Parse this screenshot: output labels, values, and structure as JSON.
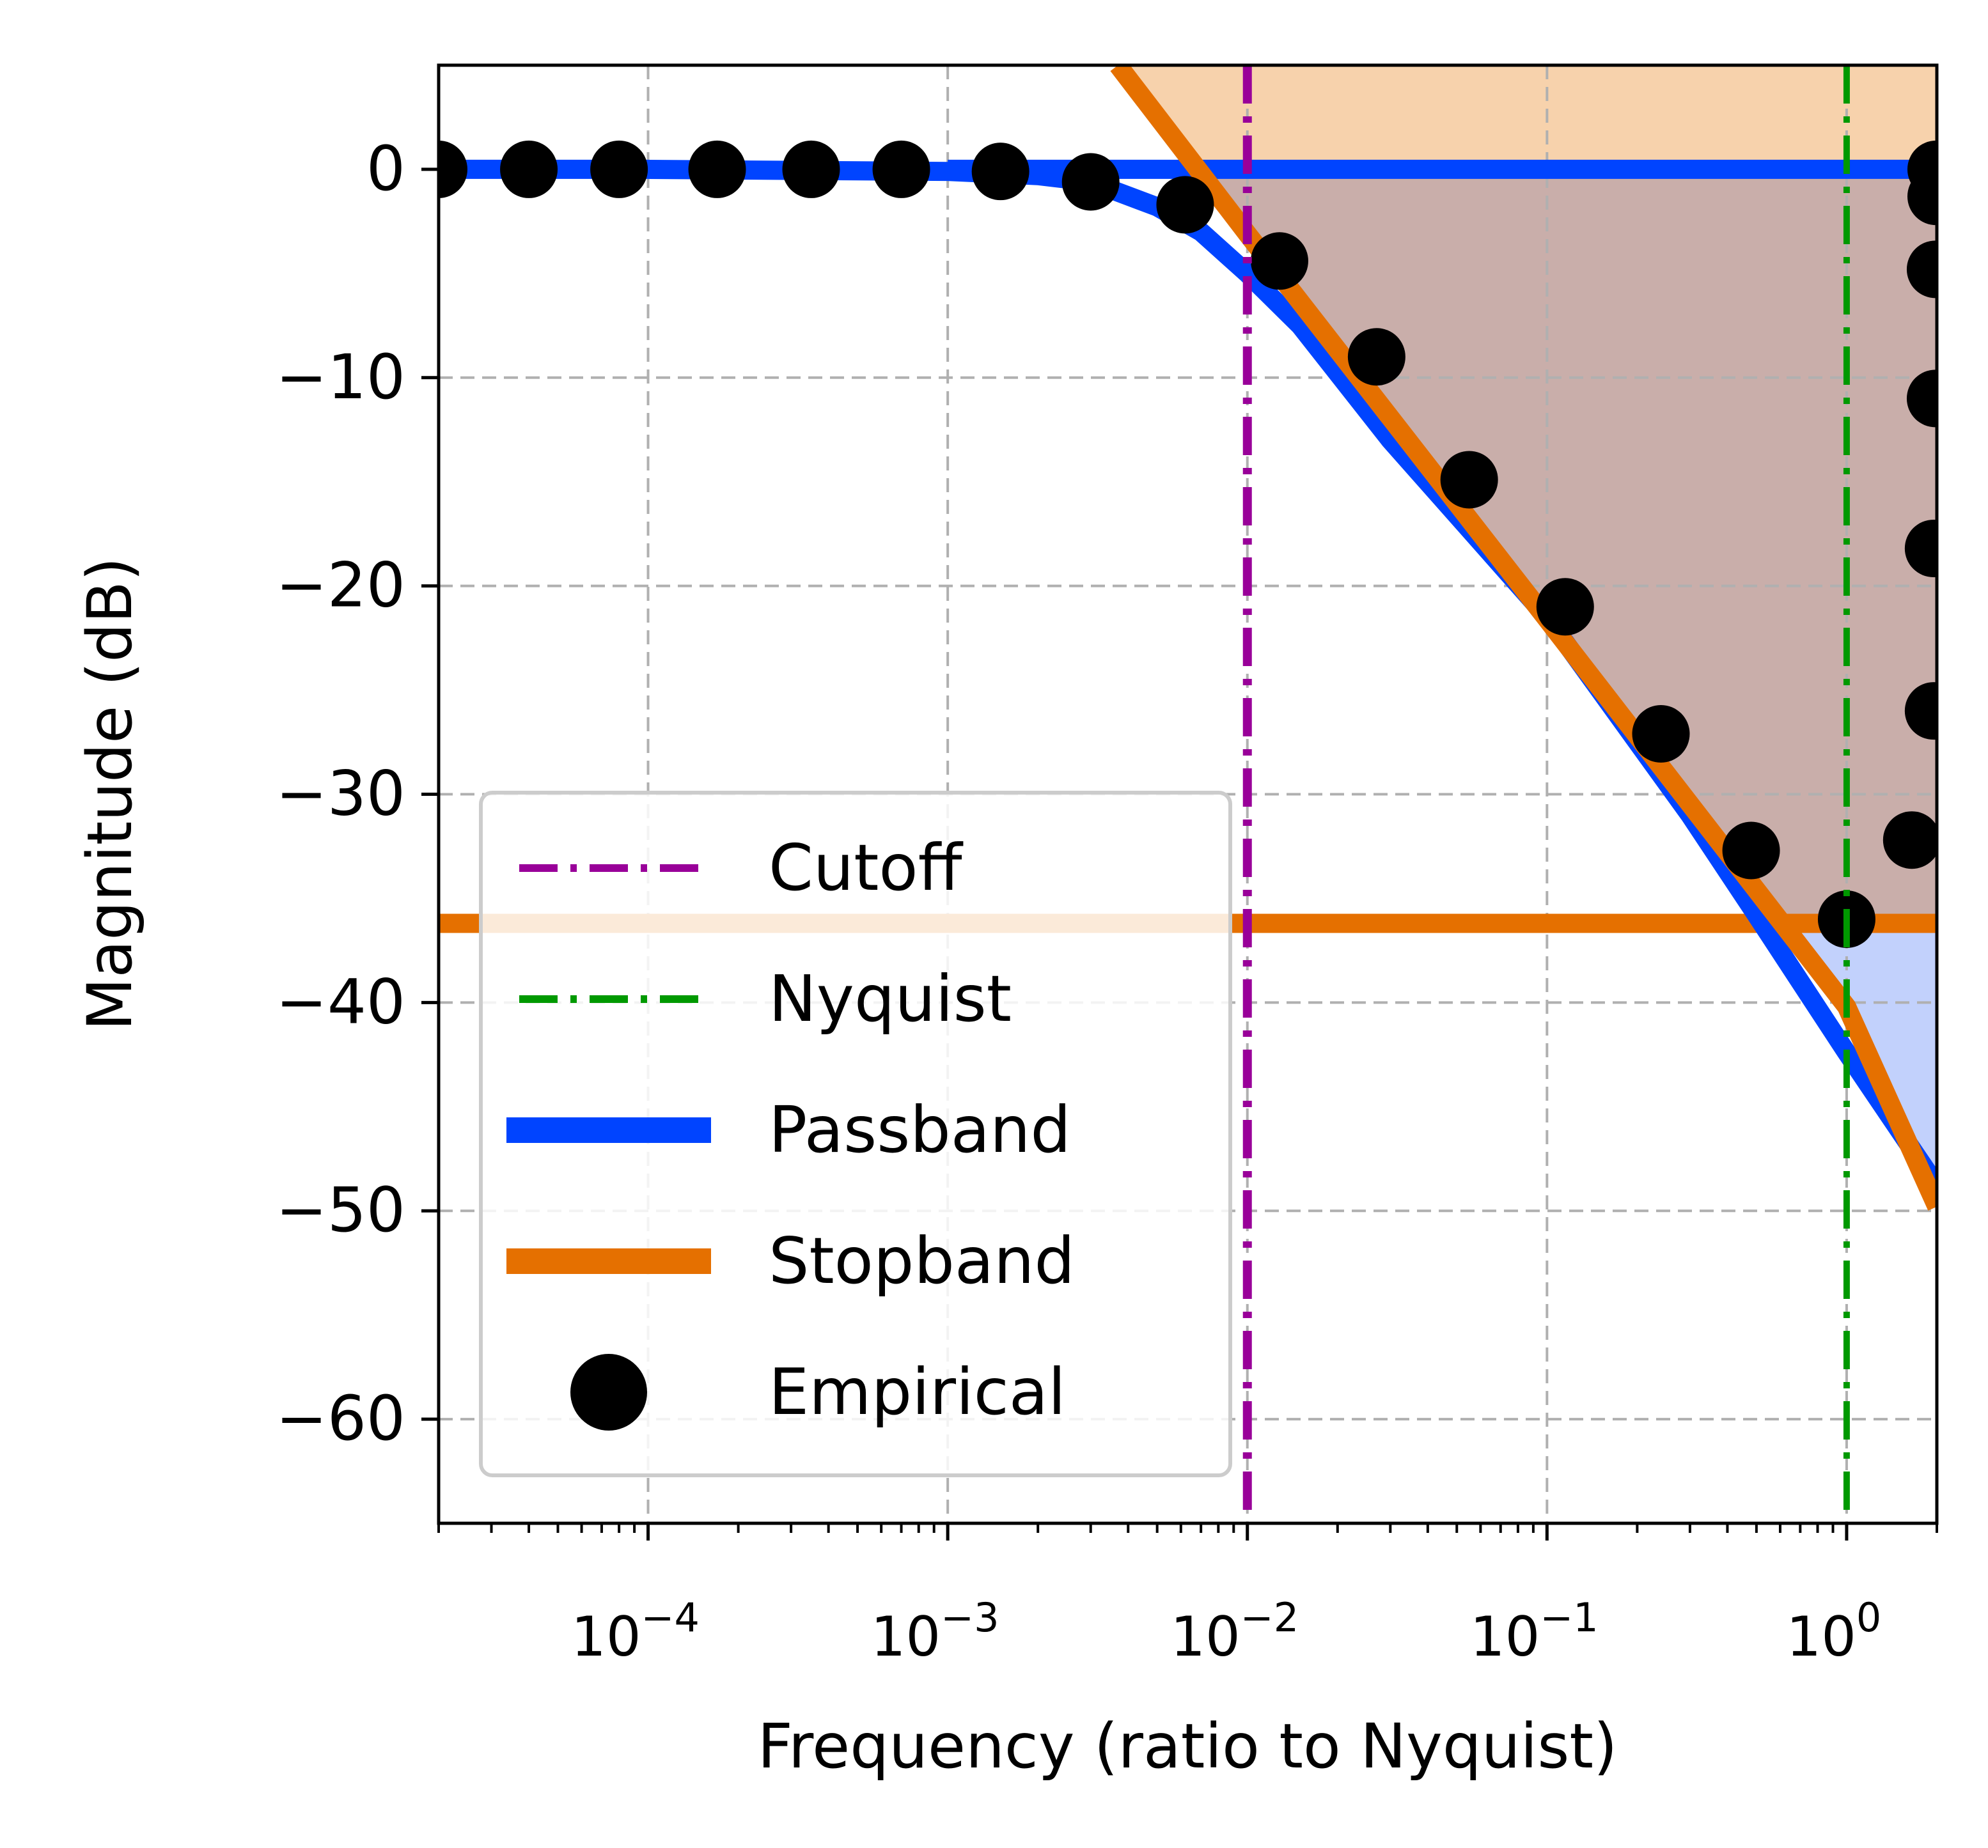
{
  "chart_data": {
    "type": "line",
    "xlabel": "Frequency (ratio to Nyquist)",
    "ylabel": "Magnitude (dB)",
    "xscale": "log",
    "xlim": [
      2e-05,
      2.0
    ],
    "ylim": [
      -65,
      5
    ],
    "grid": true,
    "legend_position": "lower-left",
    "x_ticks": [
      {
        "value": 0.0001,
        "base": "10",
        "exp": "−4"
      },
      {
        "value": 0.001,
        "base": "10",
        "exp": "−3"
      },
      {
        "value": 0.01,
        "base": "10",
        "exp": "−2"
      },
      {
        "value": 0.1,
        "base": "10",
        "exp": "−1"
      },
      {
        "value": 1,
        "base": "10",
        "exp": "0"
      }
    ],
    "y_ticks": [
      {
        "value": 0,
        "label": "0"
      },
      {
        "value": -10,
        "label": "−10"
      },
      {
        "value": -20,
        "label": "−20"
      },
      {
        "value": -30,
        "label": "−30"
      },
      {
        "value": -40,
        "label": "−40"
      },
      {
        "value": -50,
        "label": "−50"
      },
      {
        "value": -60,
        "label": "−60"
      }
    ],
    "legend": [
      {
        "label": "Cutoff",
        "kind": "dashdot",
        "color": "#990099"
      },
      {
        "label": "Nyquist",
        "kind": "dashdot",
        "color": "#009900"
      },
      {
        "label": "Passband",
        "kind": "line",
        "color": "#0044ff"
      },
      {
        "label": "Stopband",
        "kind": "line",
        "color": "#e57000"
      },
      {
        "label": "Empirical",
        "kind": "marker",
        "color": "#000000"
      }
    ],
    "colors": {
      "cutoff": "#990099",
      "nyquist": "#009900",
      "passband": "#0044ff",
      "stopband": "#e57000",
      "empirical": "#000000",
      "fill_orange": "#f7d2ac",
      "fill_brown": "#c9aeaa",
      "fill_blue": "#c2d1fc",
      "grid": "#b0b0b0"
    },
    "cutoff_x": 0.01,
    "nyquist_x": 1.0,
    "stopband_level": -36.2,
    "passband_level": 0,
    "series": [
      {
        "name": "Passband",
        "points": [
          [
            2e-05,
            0
          ],
          [
            0.0001,
            0
          ],
          [
            0.001,
            -0.1
          ],
          [
            0.002,
            -0.3
          ],
          [
            0.003,
            -0.6
          ],
          [
            0.005,
            -1.8
          ],
          [
            0.007,
            -3.0
          ],
          [
            0.01,
            -5.0
          ],
          [
            0.015,
            -7.5
          ],
          [
            0.03,
            -13.0
          ],
          [
            0.1,
            -21.5
          ],
          [
            0.3,
            -31.0
          ],
          [
            0.5,
            -35.8
          ],
          [
            1.0,
            -42.4
          ],
          [
            2.0,
            -48.8
          ]
        ]
      },
      {
        "name": "Stopband",
        "points": [
          [
            0.0037,
            5
          ],
          [
            0.01,
            -3.1
          ],
          [
            0.1,
            -21.6
          ],
          [
            1.0,
            -40.2
          ],
          [
            2.0,
            -49.8
          ]
        ]
      },
      {
        "name": "Empirical",
        "points": [
          [
            2e-05,
            0
          ],
          [
            4e-05,
            0
          ],
          [
            8e-05,
            0
          ],
          [
            0.00017,
            0
          ],
          [
            0.00035,
            0
          ],
          [
            0.0007,
            0
          ],
          [
            0.0015,
            -0.1
          ],
          [
            0.003,
            -0.6
          ],
          [
            0.0062,
            -1.7
          ],
          [
            0.0128,
            -4.4
          ],
          [
            0.027,
            -9.0
          ],
          [
            0.055,
            -14.9
          ],
          [
            0.115,
            -21.0
          ],
          [
            0.24,
            -27.1
          ],
          [
            0.48,
            -32.7
          ],
          [
            1.0,
            -36.0
          ],
          [
            1.65,
            -32.2
          ],
          [
            1.95,
            -26.0
          ],
          [
            1.95,
            -18.2
          ],
          [
            1.98,
            -11.0
          ],
          [
            1.98,
            -4.8
          ],
          [
            1.99,
            -1.3
          ],
          [
            1.99,
            0
          ]
        ]
      }
    ]
  }
}
